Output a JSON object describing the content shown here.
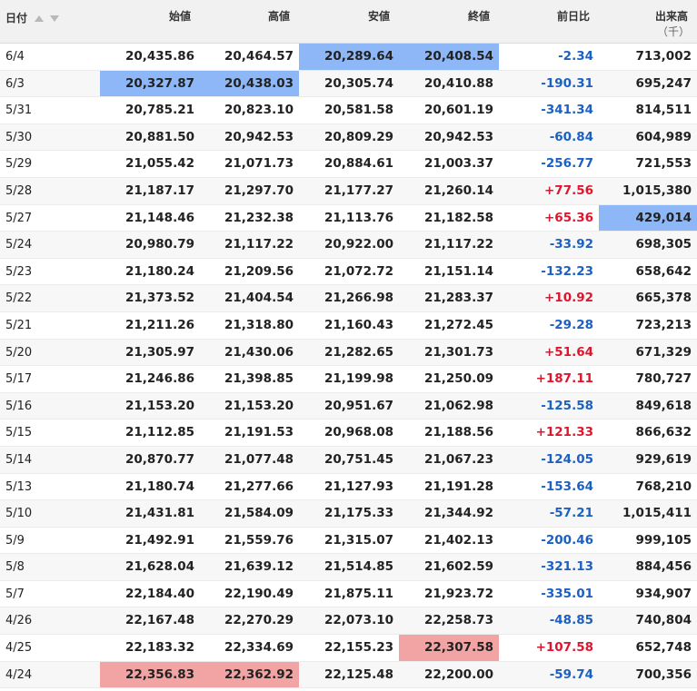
{
  "header": {
    "date": "日付",
    "open": "始値",
    "high": "高値",
    "low": "安値",
    "close": "終値",
    "change": "前日比",
    "volume": "出来高",
    "volume_unit": "（千）"
  },
  "icons": {
    "sort_up": "sort-ascending-icon",
    "sort_down": "sort-descending-icon"
  },
  "colors": {
    "highlight_blue": "#8db7f6",
    "highlight_pink": "#f2a3a3",
    "positive": "#e0152d",
    "negative": "#1b60c2"
  },
  "rows": [
    {
      "date": "6/4",
      "open": "20,435.86",
      "high": "20,464.57",
      "low": "20,289.64",
      "close": "20,408.54",
      "change": "-2.34",
      "volume": "713,002",
      "hl": {
        "low": "blue",
        "close": "blue"
      }
    },
    {
      "date": "6/3",
      "open": "20,327.87",
      "high": "20,438.03",
      "low": "20,305.74",
      "close": "20,410.88",
      "change": "-190.31",
      "volume": "695,247",
      "hl": {
        "open": "blue",
        "high": "blue"
      }
    },
    {
      "date": "5/31",
      "open": "20,785.21",
      "high": "20,823.10",
      "low": "20,581.58",
      "close": "20,601.19",
      "change": "-341.34",
      "volume": "814,511",
      "hl": {}
    },
    {
      "date": "5/30",
      "open": "20,881.50",
      "high": "20,942.53",
      "low": "20,809.29",
      "close": "20,942.53",
      "change": "-60.84",
      "volume": "604,989",
      "hl": {}
    },
    {
      "date": "5/29",
      "open": "21,055.42",
      "high": "21,071.73",
      "low": "20,884.61",
      "close": "21,003.37",
      "change": "-256.77",
      "volume": "721,553",
      "hl": {}
    },
    {
      "date": "5/28",
      "open": "21,187.17",
      "high": "21,297.70",
      "low": "21,177.27",
      "close": "21,260.14",
      "change": "+77.56",
      "volume": "1,015,380",
      "hl": {}
    },
    {
      "date": "5/27",
      "open": "21,148.46",
      "high": "21,232.38",
      "low": "21,113.76",
      "close": "21,182.58",
      "change": "+65.36",
      "volume": "429,014",
      "hl": {
        "volume": "blue"
      }
    },
    {
      "date": "5/24",
      "open": "20,980.79",
      "high": "21,117.22",
      "low": "20,922.00",
      "close": "21,117.22",
      "change": "-33.92",
      "volume": "698,305",
      "hl": {}
    },
    {
      "date": "5/23",
      "open": "21,180.24",
      "high": "21,209.56",
      "low": "21,072.72",
      "close": "21,151.14",
      "change": "-132.23",
      "volume": "658,642",
      "hl": {}
    },
    {
      "date": "5/22",
      "open": "21,373.52",
      "high": "21,404.54",
      "low": "21,266.98",
      "close": "21,283.37",
      "change": "+10.92",
      "volume": "665,378",
      "hl": {}
    },
    {
      "date": "5/21",
      "open": "21,211.26",
      "high": "21,318.80",
      "low": "21,160.43",
      "close": "21,272.45",
      "change": "-29.28",
      "volume": "723,213",
      "hl": {}
    },
    {
      "date": "5/20",
      "open": "21,305.97",
      "high": "21,430.06",
      "low": "21,282.65",
      "close": "21,301.73",
      "change": "+51.64",
      "volume": "671,329",
      "hl": {}
    },
    {
      "date": "5/17",
      "open": "21,246.86",
      "high": "21,398.85",
      "low": "21,199.98",
      "close": "21,250.09",
      "change": "+187.11",
      "volume": "780,727",
      "hl": {}
    },
    {
      "date": "5/16",
      "open": "21,153.20",
      "high": "21,153.20",
      "low": "20,951.67",
      "close": "21,062.98",
      "change": "-125.58",
      "volume": "849,618",
      "hl": {}
    },
    {
      "date": "5/15",
      "open": "21,112.85",
      "high": "21,191.53",
      "low": "20,968.08",
      "close": "21,188.56",
      "change": "+121.33",
      "volume": "866,632",
      "hl": {}
    },
    {
      "date": "5/14",
      "open": "20,870.77",
      "high": "21,077.48",
      "low": "20,751.45",
      "close": "21,067.23",
      "change": "-124.05",
      "volume": "929,619",
      "hl": {}
    },
    {
      "date": "5/13",
      "open": "21,180.74",
      "high": "21,277.66",
      "low": "21,127.93",
      "close": "21,191.28",
      "change": "-153.64",
      "volume": "768,210",
      "hl": {}
    },
    {
      "date": "5/10",
      "open": "21,431.81",
      "high": "21,584.09",
      "low": "21,175.33",
      "close": "21,344.92",
      "change": "-57.21",
      "volume": "1,015,411",
      "hl": {}
    },
    {
      "date": "5/9",
      "open": "21,492.91",
      "high": "21,559.76",
      "low": "21,315.07",
      "close": "21,402.13",
      "change": "-200.46",
      "volume": "999,105",
      "hl": {}
    },
    {
      "date": "5/8",
      "open": "21,628.04",
      "high": "21,639.12",
      "low": "21,514.85",
      "close": "21,602.59",
      "change": "-321.13",
      "volume": "884,456",
      "hl": {}
    },
    {
      "date": "5/7",
      "open": "22,184.40",
      "high": "22,190.49",
      "low": "21,875.11",
      "close": "21,923.72",
      "change": "-335.01",
      "volume": "934,907",
      "hl": {}
    },
    {
      "date": "4/26",
      "open": "22,167.48",
      "high": "22,270.29",
      "low": "22,073.10",
      "close": "22,258.73",
      "change": "-48.85",
      "volume": "740,804",
      "hl": {}
    },
    {
      "date": "4/25",
      "open": "22,183.32",
      "high": "22,334.69",
      "low": "22,155.23",
      "close": "22,307.58",
      "change": "+107.58",
      "volume": "652,748",
      "hl": {
        "close": "pink"
      }
    },
    {
      "date": "4/24",
      "open": "22,356.83",
      "high": "22,362.92",
      "low": "22,125.48",
      "close": "22,200.00",
      "change": "-59.74",
      "volume": "700,356",
      "hl": {
        "open": "pink",
        "high": "pink"
      }
    }
  ]
}
